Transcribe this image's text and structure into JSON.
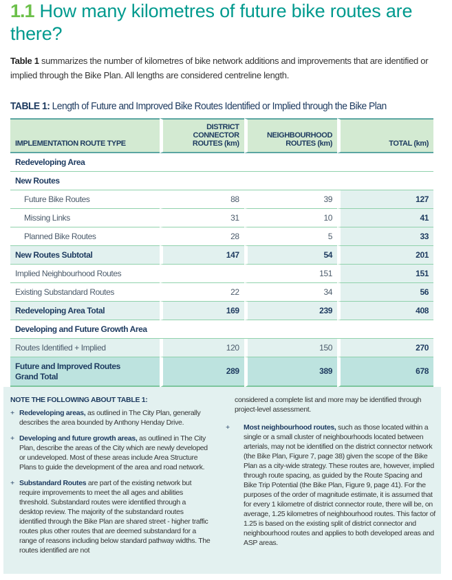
{
  "heading": {
    "number": "1.1",
    "title": "How many kilometres of future bike routes are there?"
  },
  "intro": {
    "bold": "Table 1",
    "text": " summarizes the number of kilometres of bike network additions and improvements that are identified or implied through the Bike Plan. All lengths are considered centreline length."
  },
  "table": {
    "title_bold": "TABLE 1:",
    "title": " Length of Future and Improved Bike Routes Identified or Implied through the Bike Plan",
    "headers": [
      "IMPLEMENTATION ROUTE TYPE",
      "DISTRICT CONNECTOR ROUTES (km)",
      "NEIGHBOURHOOD ROUTES (km)",
      "TOTAL (km)"
    ],
    "rows": [
      {
        "label": "Redeveloping Area"
      },
      {
        "label": "New Routes"
      },
      {
        "label": "Future Bike Routes",
        "dc": "88",
        "nb": "39",
        "total": "127"
      },
      {
        "label": "Missing Links",
        "dc": "31",
        "nb": "10",
        "total": "41"
      },
      {
        "label": "Planned Bike Routes",
        "dc": "28",
        "nb": "5",
        "total": "33"
      },
      {
        "label": "New Routes Subtotal",
        "dc": "147",
        "nb": "54",
        "total": "201"
      },
      {
        "label": "Implied Neighbourhood Routes",
        "dc": "",
        "nb": "151",
        "total": "151"
      },
      {
        "label": "Existing Substandard Routes",
        "dc": "22",
        "nb": "34",
        "total": "56"
      },
      {
        "label": "Redeveloping Area Total",
        "dc": "169",
        "nb": "239",
        "total": "408"
      },
      {
        "label": "Developing and Future Growth Area"
      },
      {
        "label": "Routes Identified + Implied",
        "dc": "120",
        "nb": "150",
        "total": "270"
      },
      {
        "label": "Future and Improved Routes Grand Total",
        "dc": "289",
        "nb": "389",
        "total": "678"
      }
    ]
  },
  "notes": {
    "heading": "NOTE THE FOLLOWING ABOUT TABLE 1:",
    "items": [
      {
        "bold": "Redeveloping areas,",
        "text": " as outlined in The City Plan, generally describes the area bounded by Anthony Henday Drive."
      },
      {
        "bold": "Developing and future growth areas,",
        "text": " as outlined in The City Plan, describe the areas of the City which are newly developed or undeveloped. Most of these areas include Area Structure Plans to guide the development of the area and road network."
      },
      {
        "bold": "Substandard Routes",
        "text": " are part of the existing network but require improvements to meet the all ages and abilities threshold. Substandard routes were identified through a desktop review. The majority of the substandard routes identified through the Bike Plan are shared street - higher traffic routes plus other routes that are deemed substandard for a range of reasons including below standard pathway widths. The routes identified are not"
      },
      {
        "continuation": "considered a complete list and more may be identified through project-level assessment."
      },
      {
        "bold": "Most neighbourhood routes,",
        "text": " such as those located within a single or a small cluster of neighbourhoods located between arterials, may not be identified on the district connector network (the Bike Plan, Figure 7, page 38) given the scope of the Bike Plan as a city-wide strategy. These routes are, however, implied through route spacing, as guided by the Route Spacing and Bike Trip Potential (the Bike Plan, Figure 9, page 41). For the purposes of the order of magnitude estimate, it is assumed that for every 1 kilometre of district connector route, there will be, on average, 1.25 kilometres of neighbourhood routes. This factor of 1.25 is based on the existing split of district connector and neighbourhood routes and applies to both developed areas and ASP areas."
      }
    ],
    "bullet": "+"
  }
}
